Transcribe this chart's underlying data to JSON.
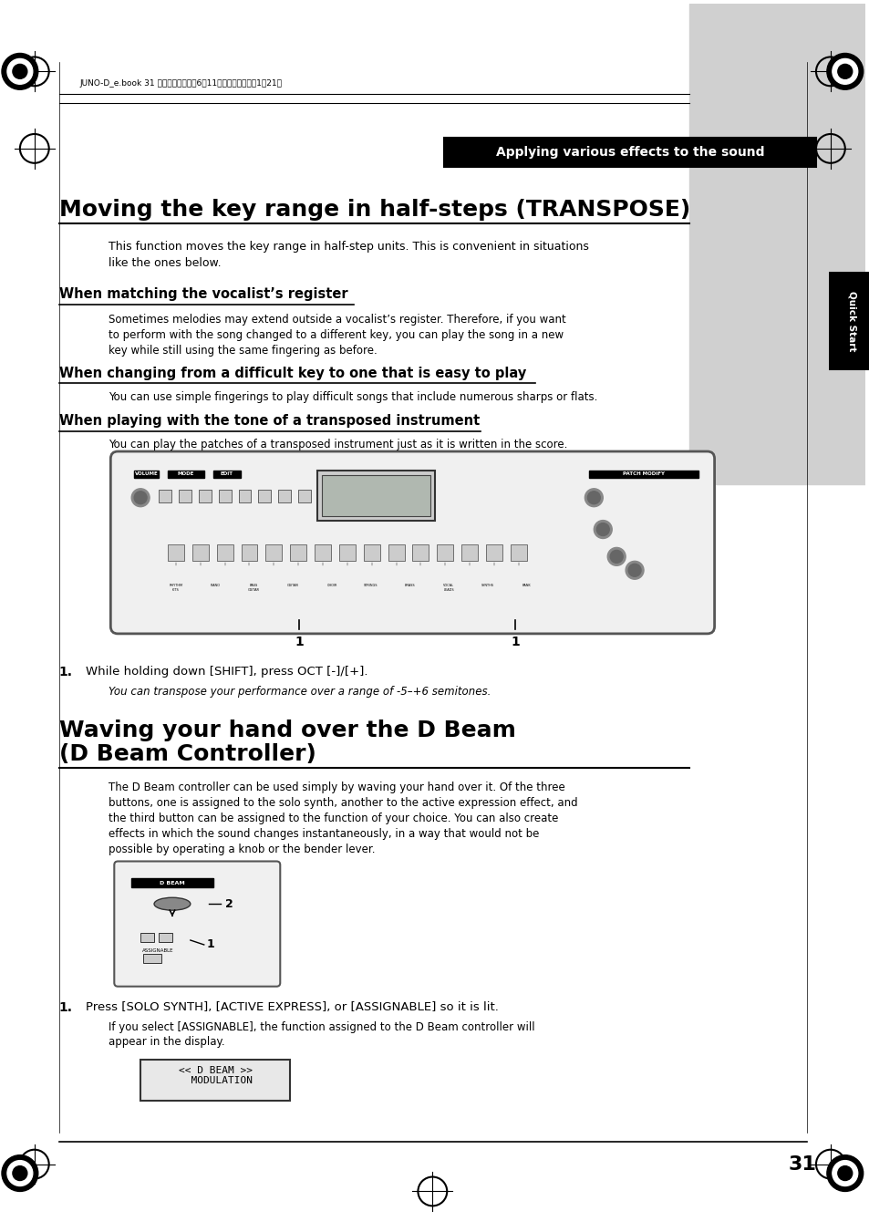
{
  "page_bg": "#ffffff",
  "gray_sidebar_color": "#d0d0d0",
  "header_text": "JUNO-D_e.book 31 ページ２００４年6月11日　金曜日　午後1時21分",
  "section_box_text": "Applying various effects to the sound",
  "main_title": "Moving the key range in half-steps (TRANSPOSE)",
  "intro_text": "This function moves the key range in half-step units. This is convenient in situations\nlike the ones below.",
  "sub1_title": "When matching the vocalist’s register",
  "sub1_text": "Sometimes melodies may extend outside a vocalist’s register. Therefore, if you want\nto perform with the song changed to a different key, you can play the song in a new\nkey while still using the same fingering as before.",
  "sub2_title": "When changing from a difficult key to one that is easy to play",
  "sub2_text": "You can use simple fingerings to play difficult songs that include numerous sharps or flats.",
  "sub3_title": "When playing with the tone of a transposed instrument",
  "sub3_text": "You can play the patches of a transposed instrument just as it is written in the score.",
  "step1_bold": "1.",
  "step1_text": "While holding down [SHIFT], press OCT [-]/[+].",
  "step1_sub": "You can transpose your performance over a range of -5–+6 semitones.",
  "section2_title": "Waving your hand over the D Beam\n(D Beam Controller)",
  "section2_intro": "The D Beam controller can be used simply by waving your hand over it. Of the three\nbuttons, one is assigned to the solo synth, another to the active expression effect, and\nthe third button can be assigned to the function of your choice. You can also create\neffects in which the sound changes instantaneously, in a way that would not be\npossible by operating a knob or the bender lever.",
  "step2_bold": "1.",
  "step2_text": "Press [SOLO SYNTH], [ACTIVE EXPRESS], or [ASSIGNABLE] so it is lit.",
  "step2_sub": "If you select [ASSIGNABLE], the function assigned to the D Beam controller will\nappear in the display.",
  "display_text": "<< D BEAM >>\n  MODULATION",
  "page_number": "31",
  "sidebar_label": "Quick Start",
  "quick_start_color": "#1a1a1a"
}
